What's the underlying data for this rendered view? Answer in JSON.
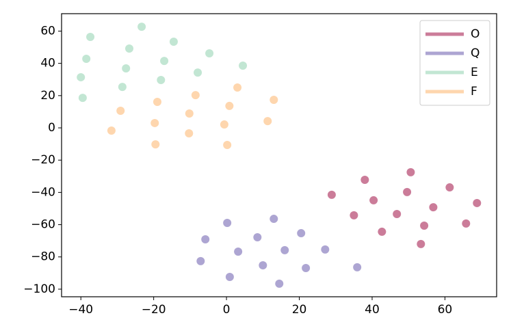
{
  "chart_data": {
    "type": "scatter",
    "legend": "upper right",
    "grid": false,
    "alpha": 0.7,
    "xlim": [
      -45.3,
      74.2
    ],
    "ylim": [
      -104.7,
      70.8
    ],
    "xticks": [
      {
        "value": -40,
        "label": "−40"
      },
      {
        "value": -20,
        "label": "−20"
      },
      0,
      20,
      40,
      60
    ],
    "yticks": [
      {
        "value": -100,
        "label": "−100"
      },
      {
        "value": -80,
        "label": "−80"
      },
      {
        "value": -60,
        "label": "−60"
      },
      {
        "value": -40,
        "label": "−40"
      },
      {
        "value": -20,
        "label": "−20"
      },
      0,
      20,
      40,
      60
    ],
    "series": [
      {
        "name": "O",
        "color": "#b5446e",
        "x": [
          28.9,
          38,
          40.4,
          50.6,
          49.6,
          35,
          42.7,
          46.8,
          56.8,
          61.3,
          54.3,
          53.4,
          65.8,
          68.8
        ],
        "values": [
          -41.5,
          -32.2,
          -44.9,
          -27.5,
          -39.8,
          -54.2,
          -64.4,
          -53.4,
          -49.2,
          -36.9,
          -60.6,
          -72,
          -59.3,
          -46.6
        ]
      },
      {
        "name": "Q",
        "color": "#8a7fbf",
        "x": [
          0.2,
          -5.8,
          -7.1,
          3.2,
          0.9,
          8.5,
          13,
          10,
          16,
          20.5,
          21.8,
          14.5,
          27.1,
          35.9
        ],
        "values": [
          -58.9,
          -69.1,
          -82.6,
          -76.7,
          -92.4,
          -67.8,
          -56.4,
          -85.2,
          -75.8,
          -65.3,
          -86.9,
          -96.6,
          -75.4,
          -86.4
        ]
      },
      {
        "name": "E",
        "color": "#a8dcc0",
        "x": [
          -37.4,
          -38.5,
          -40,
          -39.5,
          -26.7,
          -27.6,
          -28.6,
          -23.3,
          -14.5,
          -17.1,
          -18,
          -4.7,
          -7.9,
          4.5
        ],
        "values": [
          56.4,
          42.8,
          31.4,
          18.6,
          49.2,
          36.9,
          25.4,
          62.7,
          53.4,
          41.5,
          29.7,
          46.2,
          34.3,
          38.6
        ]
      },
      {
        "name": "F",
        "color": "#fdc48b",
        "x": [
          -31.6,
          -29.1,
          -19,
          -19.7,
          -19.5,
          -10.2,
          -10.3,
          -8.5,
          3,
          0.8,
          -0.6,
          0.2,
          13,
          11.3
        ],
        "values": [
          -1.7,
          10.6,
          16.1,
          3,
          -10.2,
          8.9,
          -3.4,
          20.3,
          25,
          13.6,
          2.1,
          -10.6,
          17.4,
          4.2
        ]
      }
    ]
  }
}
